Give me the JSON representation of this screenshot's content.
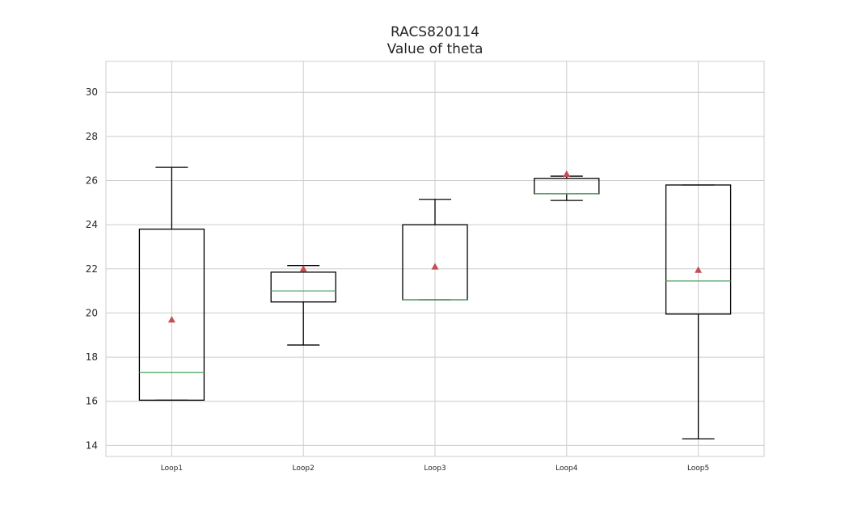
{
  "chart_data": {
    "type": "box",
    "title": "RACS820114",
    "subtitle": "Value of theta",
    "xlabel": "",
    "ylabel": "",
    "ylim": [
      13.5,
      31.4
    ],
    "yticks": [
      14,
      16,
      18,
      20,
      22,
      24,
      26,
      28,
      30
    ],
    "grid": true,
    "legend": "none",
    "categories": [
      "Loop1",
      "Loop2",
      "Loop3",
      "Loop4",
      "Loop5"
    ],
    "boxes": [
      {
        "whisker_low": 16.05,
        "q1": 16.05,
        "median": 17.3,
        "q3": 23.8,
        "whisker_high": 26.6,
        "mean": 19.7
      },
      {
        "whisker_low": 18.55,
        "q1": 20.5,
        "median": 21.0,
        "q3": 21.85,
        "whisker_high": 22.15,
        "mean": 22.0
      },
      {
        "whisker_low": 20.6,
        "q1": 20.6,
        "median": 20.6,
        "q3": 24.0,
        "whisker_high": 25.15,
        "mean": 22.1
      },
      {
        "whisker_low": 25.1,
        "q1": 25.4,
        "median": 25.4,
        "q3": 26.1,
        "whisker_high": 26.2,
        "mean": 26.3
      },
      {
        "whisker_low": 14.3,
        "q1": 19.95,
        "median": 21.45,
        "q3": 25.8,
        "whisker_high": 25.8,
        "mean": 21.95
      }
    ],
    "colors": {
      "box": "#000000",
      "median": "#55a868",
      "mean": "#c44e52",
      "grid": "#cccccc",
      "frame": "#cccccc"
    }
  }
}
